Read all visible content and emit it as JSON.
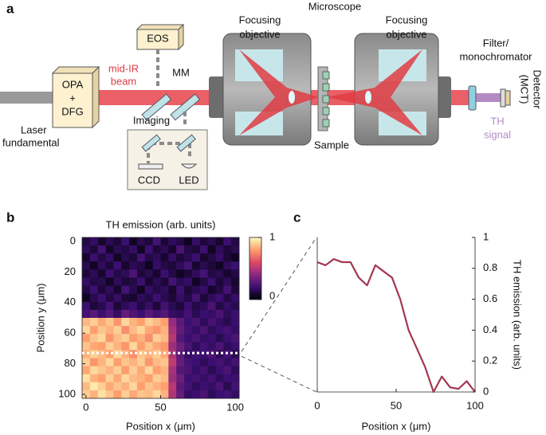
{
  "panel_labels": [
    "a",
    "b",
    "c"
  ],
  "diagram": {
    "microscope": "Microscope",
    "eos": "EOS",
    "opa": [
      "OPA",
      "+",
      "DFG"
    ],
    "mid_ir": [
      "mid-IR",
      "beam"
    ],
    "laser": [
      "Laser",
      "fundamental"
    ],
    "mm": "MM",
    "imaging": "Imaging",
    "ccd": "CCD",
    "led": "LED",
    "objective_left": [
      "Focusing",
      "objective"
    ],
    "objective_right": [
      "Focusing",
      "objective"
    ],
    "sample": "Sample",
    "filter": [
      "Filter/",
      "monochromator"
    ],
    "detector": [
      "Detector",
      "(MCT)"
    ],
    "th_signal": [
      "TH",
      "signal"
    ]
  },
  "chart_data": [
    {
      "type": "heatmap",
      "title": "TH emission (arb. units)",
      "x_label": "Position x (μm)",
      "y_label": "Position y (μm)",
      "xlim": [
        -2.6,
        102.6
      ],
      "ylim": [
        102.6,
        -2.6
      ],
      "xticks": [
        0,
        50,
        100
      ],
      "yticks": [
        0,
        20,
        40,
        60,
        80,
        100
      ],
      "colormap": "inferno",
      "clim": [
        0,
        1
      ],
      "cticks": [
        0,
        1
      ],
      "profile_line_y": 73,
      "z": [
        [
          0.12,
          0.18,
          0.08,
          0.15,
          0.1,
          0.2,
          0.06,
          0.14,
          0.1,
          0.22,
          0.09,
          0.16,
          0.12,
          0.05,
          0.18,
          0.1,
          0.14,
          0.08,
          0.2,
          0.12
        ],
        [
          0.16,
          0.1,
          0.22,
          0.07,
          0.15,
          0.12,
          0.18,
          0.06,
          0.2,
          0.1,
          0.15,
          0.08,
          0.24,
          0.12,
          0.1,
          0.2,
          0.06,
          0.16,
          0.1,
          0.14
        ],
        [
          0.08,
          0.2,
          0.12,
          0.18,
          0.06,
          0.14,
          0.1,
          0.22,
          0.12,
          0.16,
          0.08,
          0.18,
          0.1,
          0.14,
          0.2,
          0.08,
          0.12,
          0.18,
          0.1,
          0.06
        ],
        [
          0.14,
          0.06,
          0.16,
          0.1,
          0.2,
          0.08,
          0.15,
          0.12,
          0.05,
          0.18,
          0.12,
          0.1,
          0.16,
          0.22,
          0.08,
          0.14,
          0.1,
          0.06,
          0.16,
          0.2
        ],
        [
          0.1,
          0.15,
          0.08,
          0.2,
          0.12,
          0.16,
          0.24,
          0.1,
          0.14,
          0.08,
          0.2,
          0.12,
          0.06,
          0.1,
          0.16,
          0.22,
          0.12,
          0.14,
          0.08,
          0.12
        ],
        [
          0.18,
          0.12,
          0.14,
          0.06,
          0.16,
          0.1,
          0.12,
          0.2,
          0.08,
          0.15,
          0.1,
          0.22,
          0.14,
          0.18,
          0.06,
          0.12,
          0.2,
          0.1,
          0.16,
          0.08
        ],
        [
          0.12,
          0.2,
          0.1,
          0.16,
          0.08,
          0.22,
          0.14,
          0.06,
          0.18,
          0.12,
          0.16,
          0.08,
          0.2,
          0.1,
          0.14,
          0.18,
          0.08,
          0.12,
          0.22,
          0.1
        ],
        [
          0.06,
          0.14,
          0.2,
          0.12,
          0.18,
          0.1,
          0.08,
          0.16,
          0.12,
          0.2,
          0.14,
          0.1,
          0.18,
          0.12,
          0.22,
          0.1,
          0.16,
          0.2,
          0.12,
          0.18
        ],
        [
          0.2,
          0.1,
          0.14,
          0.22,
          0.1,
          0.16,
          0.2,
          0.12,
          0.18,
          0.1,
          0.22,
          0.14,
          0.1,
          0.2,
          0.12,
          0.16,
          0.24,
          0.12,
          0.18,
          0.14
        ],
        [
          0.22,
          0.28,
          0.2,
          0.26,
          0.18,
          0.3,
          0.24,
          0.2,
          0.28,
          0.22,
          0.26,
          0.18,
          0.16,
          0.22,
          0.14,
          0.2,
          0.18,
          0.24,
          0.16,
          0.2
        ],
        [
          0.85,
          0.9,
          0.82,
          0.88,
          0.78,
          0.92,
          0.84,
          0.8,
          0.9,
          0.86,
          0.8,
          0.42,
          0.28,
          0.2,
          0.24,
          0.16,
          0.22,
          0.18,
          0.14,
          0.2
        ],
        [
          0.92,
          0.8,
          0.88,
          0.84,
          0.9,
          0.76,
          0.86,
          0.92,
          0.82,
          0.78,
          0.84,
          0.46,
          0.3,
          0.22,
          0.18,
          0.24,
          0.16,
          0.2,
          0.22,
          0.18
        ],
        [
          0.8,
          0.88,
          0.92,
          0.78,
          0.86,
          0.9,
          0.8,
          0.84,
          0.76,
          0.9,
          0.86,
          0.5,
          0.26,
          0.2,
          0.24,
          0.18,
          0.2,
          0.14,
          0.2,
          0.24
        ],
        [
          0.88,
          0.82,
          0.8,
          0.9,
          0.84,
          0.78,
          0.92,
          0.8,
          0.88,
          0.82,
          0.78,
          0.44,
          0.32,
          0.24,
          0.16,
          0.22,
          0.18,
          0.24,
          0.16,
          0.2
        ],
        [
          0.84,
          0.9,
          0.86,
          0.8,
          0.92,
          0.84,
          0.76,
          0.88,
          0.84,
          0.9,
          0.82,
          0.48,
          0.28,
          0.18,
          0.22,
          0.2,
          0.24,
          0.16,
          0.22,
          0.14
        ],
        [
          0.9,
          0.78,
          0.84,
          0.92,
          0.8,
          0.88,
          0.84,
          0.9,
          0.78,
          0.86,
          0.88,
          0.52,
          0.3,
          0.22,
          0.2,
          0.16,
          0.2,
          0.22,
          0.18,
          0.22
        ],
        [
          0.82,
          0.92,
          0.88,
          0.84,
          0.9,
          0.8,
          0.9,
          0.82,
          0.92,
          0.8,
          0.84,
          0.46,
          0.26,
          0.24,
          0.18,
          0.22,
          0.14,
          0.2,
          0.24,
          0.16
        ],
        [
          0.94,
          0.84,
          0.8,
          0.9,
          0.82,
          0.92,
          0.86,
          0.84,
          0.8,
          0.9,
          0.86,
          0.44,
          0.32,
          0.2,
          0.22,
          0.18,
          0.22,
          0.16,
          0.2,
          0.2
        ],
        [
          0.86,
          0.96,
          0.9,
          0.82,
          0.88,
          0.84,
          0.92,
          0.8,
          0.88,
          0.84,
          0.8,
          0.5,
          0.28,
          0.22,
          0.16,
          0.2,
          0.18,
          0.24,
          0.14,
          0.22
        ],
        [
          0.9,
          0.84,
          0.94,
          0.88,
          0.8,
          0.9,
          0.82,
          0.88,
          0.86,
          0.92,
          0.84,
          0.48,
          0.3,
          0.18,
          0.2,
          0.24,
          0.16,
          0.2,
          0.22,
          0.18
        ]
      ]
    },
    {
      "type": "line",
      "x_label": "Position x (μm)",
      "y_label": "TH emission (arb. units)",
      "color": "#a3374f",
      "x": [
        0,
        5.3,
        10.5,
        15.8,
        21.1,
        26.3,
        31.6,
        36.8,
        42.1,
        47.4,
        52.6,
        57.9,
        63.2,
        68.4,
        73.7,
        78.9,
        84.2,
        89.5,
        94.7,
        100
      ],
      "values": [
        0.84,
        0.82,
        0.86,
        0.84,
        0.84,
        0.74,
        0.69,
        0.82,
        0.78,
        0.74,
        0.6,
        0.4,
        0.28,
        0.16,
        0.0,
        0.1,
        0.03,
        0.02,
        0.07,
        0.0
      ],
      "xlim": [
        0,
        100
      ],
      "ylim": [
        0,
        1
      ],
      "xticks": [
        0,
        50,
        100
      ],
      "yticks": [
        0,
        0.2,
        0.4,
        0.6,
        0.8,
        1
      ]
    }
  ]
}
